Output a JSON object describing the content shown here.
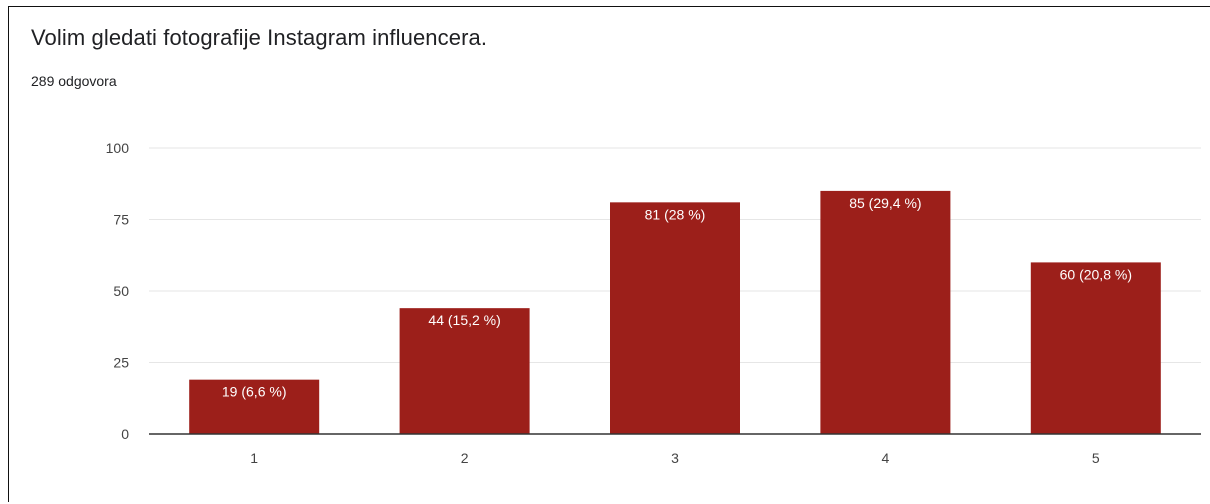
{
  "header": {
    "title": "Volim gledati fotografije Instagram influencera.",
    "response_count": "289 odgovora"
  },
  "colors": {
    "bar": "#9c1f1a",
    "grid": "#e6e6e6",
    "axis": "#333333",
    "tick_text": "#444444",
    "data_label_text": "#ffffff"
  },
  "chart_data": {
    "type": "bar",
    "categories": [
      "1",
      "2",
      "3",
      "4",
      "5"
    ],
    "values": [
      19,
      44,
      81,
      85,
      60
    ],
    "data_labels": [
      "19 (6,6 %)",
      "44 (15,2 %)",
      "81 (28 %)",
      "85 (29,4 %)",
      "60 (20,8 %)"
    ],
    "ylim": [
      0,
      100
    ],
    "yticks": [
      0,
      25,
      50,
      75,
      100
    ],
    "ytick_labels": [
      "0",
      "25",
      "50",
      "75",
      "100"
    ],
    "grid": true,
    "legend": "none"
  }
}
